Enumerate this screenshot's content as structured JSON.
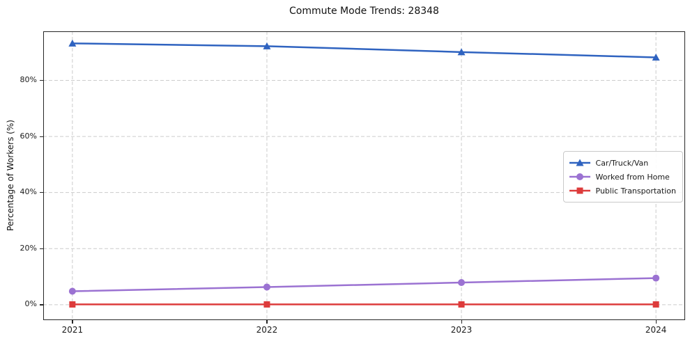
{
  "title": "Commute Mode Trends: 28348",
  "chart_data": {
    "type": "line",
    "title": "Commute Mode Trends: 28348",
    "xlabel": "",
    "ylabel": "Percentage of Workers (%)",
    "x": [
      "2021",
      "2022",
      "2023",
      "2024"
    ],
    "series": [
      {
        "name": "Car/Truck/Van",
        "color": "#2f63c0",
        "marker": "triangle",
        "values": [
          93.2,
          92.2,
          90.1,
          88.2
        ]
      },
      {
        "name": "Worked from Home",
        "color": "#9b72d2",
        "marker": "circle",
        "values": [
          4.8,
          6.3,
          7.9,
          9.5
        ]
      },
      {
        "name": "Public Transportation",
        "color": "#dd3b3b",
        "marker": "square",
        "values": [
          0.1,
          0.1,
          0.1,
          0.1
        ]
      }
    ],
    "yticks": [
      0,
      20,
      40,
      60,
      80
    ],
    "ytick_labels": [
      "0%",
      "20%",
      "40%",
      "60%",
      "80%"
    ],
    "ylim": [
      -5.5,
      97.5
    ],
    "grid": true,
    "grid_style": "dashed",
    "legend_position": "center right",
    "colors": {
      "grid": "#cccccc",
      "spine": "#262626",
      "text": "#1a1a1a",
      "background": "#ffffff"
    }
  }
}
